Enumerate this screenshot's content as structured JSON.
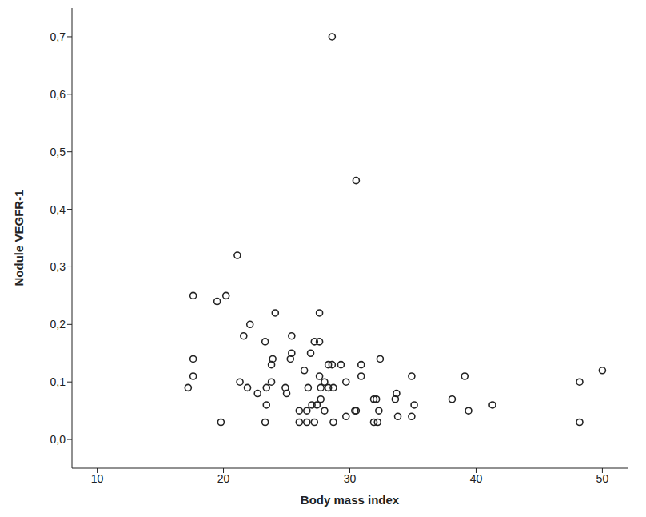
{
  "chart_data": {
    "type": "scatter",
    "x_label": "Body mass index",
    "y_label": "Nodule VEGFR-1",
    "marker": "o",
    "color": "#222222",
    "grid": false,
    "xlim": [
      8,
      52
    ],
    "xticks": [
      10,
      20,
      30,
      40,
      50
    ],
    "ylim": [
      -0.05,
      0.75
    ],
    "yticks": [
      {
        "value": 0,
        "label": "0,0"
      },
      {
        "value": 0.1,
        "label": "0,1"
      },
      {
        "value": 0.2,
        "label": "0,2"
      },
      {
        "value": 0.3,
        "label": "0,3"
      },
      {
        "value": 0.4,
        "label": "0,4"
      },
      {
        "value": 0.5,
        "label": "0,5"
      },
      {
        "value": 0.6,
        "label": "0,6"
      },
      {
        "value": 0.7,
        "label": "0,7"
      }
    ],
    "x": [
      28.6,
      30.5,
      21.1,
      17.6,
      20.2,
      19.5,
      22.1,
      24.1,
      27.6,
      21.6,
      25.4,
      23.3,
      27.2,
      27.6,
      26.9,
      25.4,
      17.6,
      23.9,
      25.3,
      32.4,
      23.8,
      26.4,
      28.3,
      28.6,
      29.3,
      30.9,
      17.6,
      27.6,
      30.9,
      34.9,
      39.1,
      50.0,
      17.2,
      21.3,
      21.9,
      22.7,
      23.4,
      23.8,
      24.9,
      25.0,
      26.7,
      27.7,
      28.0,
      28.3,
      28.7,
      29.7,
      33.7,
      48.2,
      23.4,
      27.7,
      27.4,
      28.0,
      26.0,
      26.6,
      27.0,
      31.9,
      32.1,
      33.6,
      35.1,
      38.1,
      41.3,
      39.4,
      30.4,
      30.5,
      32.3,
      29.7,
      33.8,
      34.9,
      19.8,
      23.3,
      26.0,
      26.6,
      27.2,
      28.7,
      31.9,
      32.2,
      48.2
    ],
    "values": [
      0.7,
      0.45,
      0.32,
      0.25,
      0.25,
      0.24,
      0.2,
      0.22,
      0.22,
      0.18,
      0.18,
      0.17,
      0.17,
      0.17,
      0.15,
      0.15,
      0.14,
      0.14,
      0.14,
      0.14,
      0.13,
      0.12,
      0.13,
      0.13,
      0.13,
      0.13,
      0.11,
      0.11,
      0.11,
      0.11,
      0.11,
      0.12,
      0.09,
      0.1,
      0.09,
      0.08,
      0.09,
      0.1,
      0.09,
      0.08,
      0.09,
      0.09,
      0.1,
      0.09,
      0.09,
      0.1,
      0.08,
      0.1,
      0.06,
      0.07,
      0.06,
      0.05,
      0.05,
      0.05,
      0.06,
      0.07,
      0.07,
      0.07,
      0.06,
      0.07,
      0.06,
      0.05,
      0.05,
      0.05,
      0.05,
      0.04,
      0.04,
      0.04,
      0.03,
      0.03,
      0.03,
      0.03,
      0.03,
      0.03,
      0.03,
      0.03,
      0.03
    ]
  }
}
